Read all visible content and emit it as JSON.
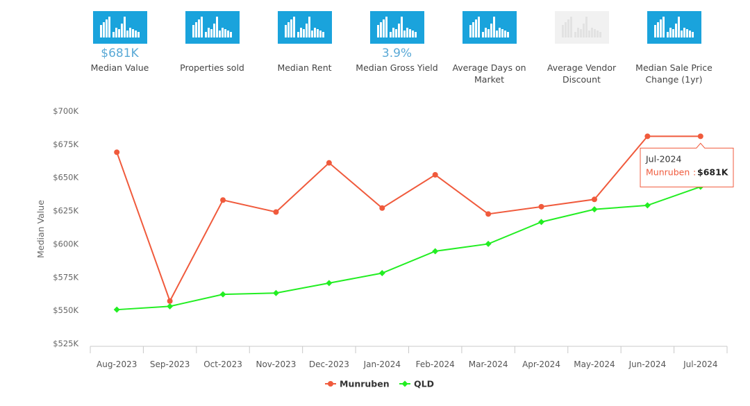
{
  "metrics": [
    {
      "label": "Median Value",
      "value": "$681K",
      "enabled": true
    },
    {
      "label": "Properties sold",
      "value": "",
      "enabled": true
    },
    {
      "label": "Median Rent",
      "value": "",
      "enabled": true
    },
    {
      "label": "Median Gross Yield",
      "value": "3.9%",
      "enabled": true
    },
    {
      "label": "Average Days on Market",
      "value": "",
      "enabled": true
    },
    {
      "label": "Average Vendor Discount",
      "value": "",
      "enabled": false
    },
    {
      "label": "Median Sale Price Change (1yr)",
      "value": "",
      "enabled": true
    }
  ],
  "colors": {
    "tile": "#1aa3dc",
    "tile_disabled": "#f1f1f1",
    "value_text": "#5aa9d6"
  },
  "chart_data": {
    "type": "line",
    "categories": [
      "Aug-2023",
      "Sep-2023",
      "Oct-2023",
      "Nov-2023",
      "Dec-2023",
      "Jan-2024",
      "Feb-2024",
      "Mar-2024",
      "Apr-2024",
      "May-2024",
      "Jun-2024",
      "Jul-2024"
    ],
    "series": [
      {
        "name": "Munruben",
        "color": "#f05a3c",
        "marker": "circle",
        "values": [
          669000,
          557000,
          633000,
          624000,
          661000,
          627000,
          652000,
          622500,
          628000,
          633500,
          681000,
          681000
        ]
      },
      {
        "name": "QLD",
        "color": "#22ee22",
        "marker": "diamond",
        "values": [
          550500,
          553000,
          562000,
          563000,
          570500,
          578000,
          594500,
          600000,
          616500,
          626000,
          629000,
          643000
        ]
      }
    ],
    "ylabel": "Median Value",
    "ylim": [
      525000,
      700000
    ],
    "yticks": [
      "$525K",
      "$550K",
      "$575K",
      "$600K",
      "$625K",
      "$650K",
      "$675K",
      "$700K"
    ],
    "legend": "bottom-center",
    "grid": false,
    "tooltip": {
      "title": "Jul-2024",
      "series": "Munruben",
      "value": "$681K",
      "category_index": 11
    }
  }
}
